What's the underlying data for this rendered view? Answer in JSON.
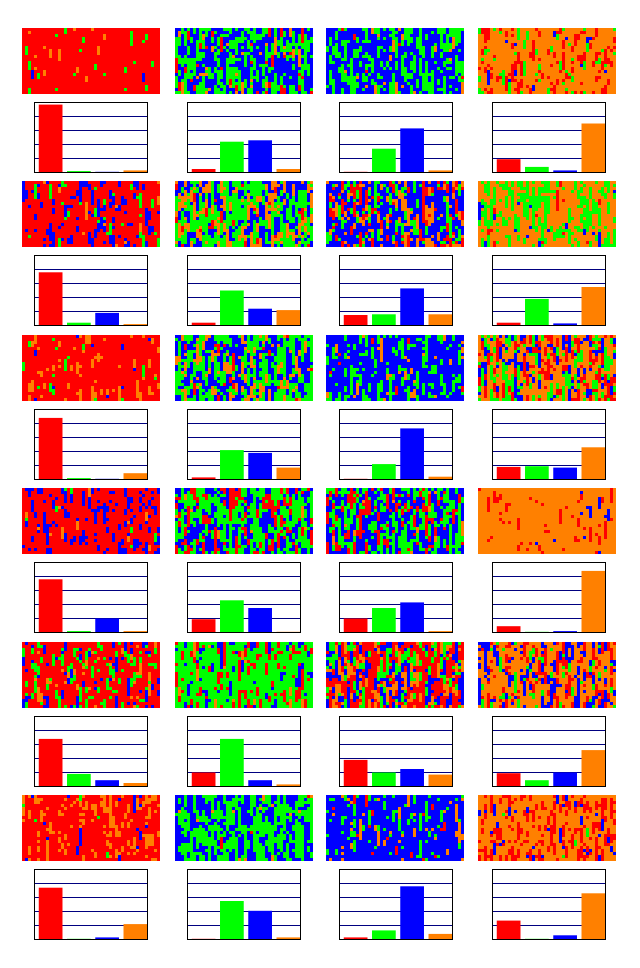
{
  "chart_data": [
    {
      "type": "bar",
      "values": [
        0.97,
        0.02,
        0.01,
        0.03
      ],
      "colors": [
        "#ff0000",
        "#00ff00",
        "#0000ff",
        "#ff8000"
      ],
      "ylim": [
        0,
        1
      ],
      "yticks": [
        0.2,
        0.4,
        0.6,
        0.8
      ],
      "grid": true
    },
    {
      "type": "bar",
      "values": [
        0.05,
        0.44,
        0.46,
        0.05
      ],
      "colors": [
        "#ff0000",
        "#00ff00",
        "#0000ff",
        "#ff8000"
      ],
      "ylim": [
        0,
        1
      ],
      "yticks": [
        0.2,
        0.4,
        0.6,
        0.8
      ],
      "grid": true
    },
    {
      "type": "bar",
      "values": [
        0.01,
        0.34,
        0.63,
        0.03
      ],
      "colors": [
        "#ff0000",
        "#00ff00",
        "#0000ff",
        "#ff8000"
      ],
      "ylim": [
        0,
        1
      ],
      "yticks": [
        0.2,
        0.4,
        0.6,
        0.8
      ],
      "grid": true
    },
    {
      "type": "bar",
      "values": [
        0.19,
        0.08,
        0.03,
        0.7
      ],
      "colors": [
        "#ff0000",
        "#00ff00",
        "#0000ff",
        "#ff8000"
      ],
      "ylim": [
        0,
        1
      ],
      "yticks": [
        0.2,
        0.4,
        0.6,
        0.8
      ],
      "grid": true
    },
    {
      "type": "bar",
      "values": [
        0.76,
        0.04,
        0.18,
        0.02
      ],
      "colors": [
        "#ff0000",
        "#00ff00",
        "#0000ff",
        "#ff8000"
      ],
      "ylim": [
        0,
        1
      ],
      "yticks": [
        0.2,
        0.4,
        0.6,
        0.8
      ],
      "grid": true
    },
    {
      "type": "bar",
      "values": [
        0.04,
        0.5,
        0.24,
        0.22
      ],
      "colors": [
        "#ff0000",
        "#00ff00",
        "#0000ff",
        "#ff8000"
      ],
      "ylim": [
        0,
        1
      ],
      "yticks": [
        0.2,
        0.4,
        0.6,
        0.8
      ],
      "grid": true
    },
    {
      "type": "bar",
      "values": [
        0.15,
        0.16,
        0.53,
        0.16
      ],
      "colors": [
        "#ff0000",
        "#00ff00",
        "#0000ff",
        "#ff8000"
      ],
      "ylim": [
        0,
        1
      ],
      "yticks": [
        0.2,
        0.4,
        0.6,
        0.8
      ],
      "grid": true
    },
    {
      "type": "bar",
      "values": [
        0.04,
        0.38,
        0.03,
        0.55
      ],
      "colors": [
        "#ff0000",
        "#00ff00",
        "#0000ff",
        "#ff8000"
      ],
      "ylim": [
        0,
        1
      ],
      "yticks": [
        0.2,
        0.4,
        0.6,
        0.8
      ],
      "grid": true
    },
    {
      "type": "bar",
      "values": [
        0.88,
        0.02,
        0.01,
        0.09
      ],
      "colors": [
        "#ff0000",
        "#00ff00",
        "#0000ff",
        "#ff8000"
      ],
      "ylim": [
        0,
        1
      ],
      "yticks": [
        0.2,
        0.4,
        0.6,
        0.8
      ],
      "grid": true
    },
    {
      "type": "bar",
      "values": [
        0.03,
        0.42,
        0.38,
        0.17
      ],
      "colors": [
        "#ff0000",
        "#00ff00",
        "#0000ff",
        "#ff8000"
      ],
      "ylim": [
        0,
        1
      ],
      "yticks": [
        0.2,
        0.4,
        0.6,
        0.8
      ],
      "grid": true
    },
    {
      "type": "bar",
      "values": [
        0.01,
        0.22,
        0.73,
        0.04
      ],
      "colors": [
        "#ff0000",
        "#00ff00",
        "#0000ff",
        "#ff8000"
      ],
      "ylim": [
        0,
        1
      ],
      "yticks": [
        0.2,
        0.4,
        0.6,
        0.8
      ],
      "grid": true
    },
    {
      "type": "bar",
      "values": [
        0.18,
        0.19,
        0.17,
        0.46
      ],
      "colors": [
        "#ff0000",
        "#00ff00",
        "#0000ff",
        "#ff8000"
      ],
      "ylim": [
        0,
        1
      ],
      "yticks": [
        0.2,
        0.4,
        0.6,
        0.8
      ],
      "grid": true
    },
    {
      "type": "bar",
      "values": [
        0.76,
        0.02,
        0.2,
        0.02
      ],
      "colors": [
        "#ff0000",
        "#00ff00",
        "#0000ff",
        "#ff8000"
      ],
      "ylim": [
        0,
        1
      ],
      "yticks": [
        0.2,
        0.4,
        0.6,
        0.8
      ],
      "grid": true
    },
    {
      "type": "bar",
      "values": [
        0.19,
        0.46,
        0.35,
        0.01
      ],
      "colors": [
        "#ff0000",
        "#00ff00",
        "#0000ff",
        "#ff8000"
      ],
      "ylim": [
        0,
        1
      ],
      "yticks": [
        0.2,
        0.4,
        0.6,
        0.8
      ],
      "grid": true
    },
    {
      "type": "bar",
      "values": [
        0.2,
        0.35,
        0.43,
        0.02
      ],
      "colors": [
        "#ff0000",
        "#00ff00",
        "#0000ff",
        "#ff8000"
      ],
      "ylim": [
        0,
        1
      ],
      "yticks": [
        0.2,
        0.4,
        0.6,
        0.8
      ],
      "grid": true
    },
    {
      "type": "bar",
      "values": [
        0.09,
        0.01,
        0.02,
        0.88
      ],
      "colors": [
        "#ff0000",
        "#00ff00",
        "#0000ff",
        "#ff8000"
      ],
      "ylim": [
        0,
        1
      ],
      "yticks": [
        0.2,
        0.4,
        0.6,
        0.8
      ],
      "grid": true
    },
    {
      "type": "bar",
      "values": [
        0.68,
        0.18,
        0.09,
        0.05
      ],
      "colors": [
        "#ff0000",
        "#00ff00",
        "#0000ff",
        "#ff8000"
      ],
      "ylim": [
        0,
        1
      ],
      "yticks": [
        0.2,
        0.4,
        0.6,
        0.8
      ],
      "grid": true
    },
    {
      "type": "bar",
      "values": [
        0.2,
        0.68,
        0.09,
        0.03
      ],
      "colors": [
        "#ff0000",
        "#00ff00",
        "#0000ff",
        "#ff8000"
      ],
      "ylim": [
        0,
        1
      ],
      "yticks": [
        0.2,
        0.4,
        0.6,
        0.8
      ],
      "grid": true
    },
    {
      "type": "bar",
      "values": [
        0.38,
        0.2,
        0.25,
        0.17
      ],
      "colors": [
        "#ff0000",
        "#00ff00",
        "#0000ff",
        "#ff8000"
      ],
      "ylim": [
        0,
        1
      ],
      "yticks": [
        0.2,
        0.4,
        0.6,
        0.8
      ],
      "grid": true
    },
    {
      "type": "bar",
      "values": [
        0.19,
        0.09,
        0.2,
        0.52
      ],
      "colors": [
        "#ff0000",
        "#00ff00",
        "#0000ff",
        "#ff8000"
      ],
      "ylim": [
        0,
        1
      ],
      "yticks": [
        0.2,
        0.4,
        0.6,
        0.8
      ],
      "grid": true
    },
    {
      "type": "bar",
      "values": [
        0.74,
        0.01,
        0.03,
        0.22
      ],
      "colors": [
        "#ff0000",
        "#00ff00",
        "#0000ff",
        "#ff8000"
      ],
      "ylim": [
        0,
        1
      ],
      "yticks": [
        0.2,
        0.4,
        0.6,
        0.8
      ],
      "grid": true
    },
    {
      "type": "bar",
      "values": [
        0.01,
        0.55,
        0.41,
        0.03
      ],
      "colors": [
        "#ff0000",
        "#00ff00",
        "#0000ff",
        "#ff8000"
      ],
      "ylim": [
        0,
        1
      ],
      "yticks": [
        0.2,
        0.4,
        0.6,
        0.8
      ],
      "grid": true
    },
    {
      "type": "bar",
      "values": [
        0.03,
        0.13,
        0.76,
        0.08
      ],
      "colors": [
        "#ff0000",
        "#00ff00",
        "#0000ff",
        "#ff8000"
      ],
      "ylim": [
        0,
        1
      ],
      "yticks": [
        0.2,
        0.4,
        0.6,
        0.8
      ],
      "grid": true
    },
    {
      "type": "bar",
      "values": [
        0.27,
        0.01,
        0.06,
        0.66
      ],
      "colors": [
        "#ff0000",
        "#00ff00",
        "#0000ff",
        "#ff8000"
      ],
      "ylim": [
        0,
        1
      ],
      "yticks": [
        0.2,
        0.4,
        0.6,
        0.8
      ],
      "grid": true
    }
  ]
}
